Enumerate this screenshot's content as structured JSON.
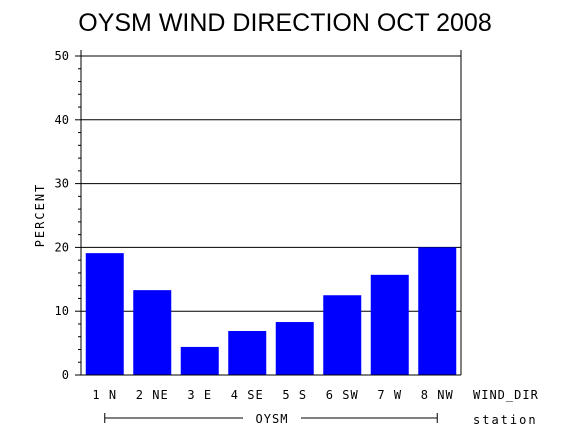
{
  "chart_data": {
    "type": "bar",
    "title": "OYSM WIND DIRECTION OCT 2008",
    "ylabel": "PERCENT",
    "xlabel": "WIND_DIR",
    "group_label": "OYSM",
    "group_axis_label": "station",
    "categories": [
      "1 N",
      "2 NE",
      "3 E",
      "4 SE",
      "5 S",
      "6 SW",
      "7 W",
      "8 NW"
    ],
    "values": [
      19.1,
      13.3,
      4.4,
      6.9,
      8.3,
      12.5,
      15.7,
      20.0
    ],
    "ylim": [
      0,
      50
    ],
    "yticks": [
      "0",
      "10",
      "20",
      "30",
      "40",
      "50"
    ],
    "bar_color": "#0000ff",
    "grid": true
  }
}
